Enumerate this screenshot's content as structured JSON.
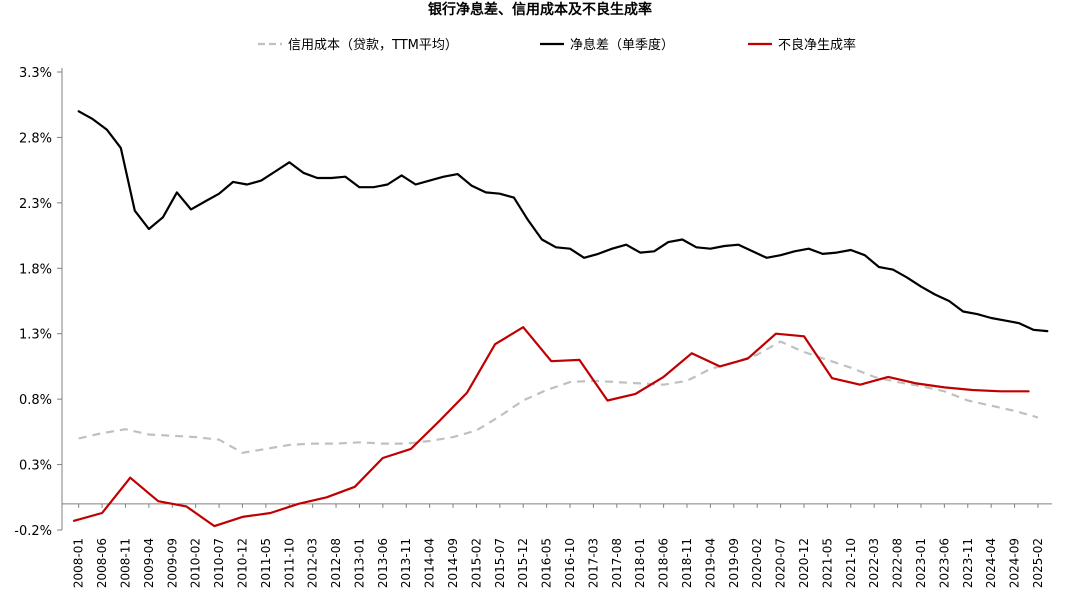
{
  "chart_data": {
    "type": "line",
    "title": "银行净息差、信用成本及不良生成率",
    "xlabel": "",
    "ylabel": "",
    "ylim": [
      -0.2,
      3.3
    ],
    "ytick_labels": [
      "3.3%",
      "2.8%",
      "2.3%",
      "1.8%",
      "1.3%",
      "0.8%",
      "0.3%",
      "-0.2%"
    ],
    "ytick_values": [
      3.3,
      2.8,
      2.3,
      1.8,
      1.3,
      0.8,
      0.3,
      -0.2
    ],
    "x_start": "2008-01",
    "x_end": "2025-04",
    "xtick_labels": [
      "2008-01",
      "2008-06",
      "2008-11",
      "2009-04",
      "2009-09",
      "2010-02",
      "2010-07",
      "2010-12",
      "2011-05",
      "2011-10",
      "2012-03",
      "2012-08",
      "2013-01",
      "2013-06",
      "2013-11",
      "2014-04",
      "2014-09",
      "2015-02",
      "2015-07",
      "2015-12",
      "2016-05",
      "2016-10",
      "2017-03",
      "2017-08",
      "2018-01",
      "2018-06",
      "2018-11",
      "2019-04",
      "2019-09",
      "2020-02",
      "2020-07",
      "2020-12",
      "2021-05",
      "2021-10",
      "2022-03",
      "2022-08",
      "2023-01",
      "2023-06",
      "2023-11",
      "2024-04",
      "2024-09",
      "2025-02"
    ],
    "grid": false,
    "legend_position": "top",
    "series": [
      {
        "name": "信用成本（贷款，TTM平均）",
        "color": "#c0c0c0",
        "dashed": true,
        "x": [
          "2008-01",
          "2008-06",
          "2008-11",
          "2009-04",
          "2009-09",
          "2010-02",
          "2010-07",
          "2010-12",
          "2011-05",
          "2011-10",
          "2012-03",
          "2012-08",
          "2013-01",
          "2013-06",
          "2013-11",
          "2014-04",
          "2014-09",
          "2015-02",
          "2015-07",
          "2015-12",
          "2016-05",
          "2016-10",
          "2017-03",
          "2017-08",
          "2018-01",
          "2018-06",
          "2018-11",
          "2019-04",
          "2019-09",
          "2020-02",
          "2020-07",
          "2020-12",
          "2021-05",
          "2021-10",
          "2022-03",
          "2022-08",
          "2023-01",
          "2023-06",
          "2023-11",
          "2024-04",
          "2024-09",
          "2025-02"
        ],
        "values": [
          0.5,
          0.54,
          0.57,
          0.53,
          0.52,
          0.51,
          0.49,
          0.39,
          0.42,
          0.45,
          0.46,
          0.46,
          0.47,
          0.46,
          0.46,
          0.48,
          0.51,
          0.56,
          0.67,
          0.79,
          0.87,
          0.93,
          0.94,
          0.93,
          0.92,
          0.91,
          0.94,
          1.03,
          1.08,
          1.14,
          1.24,
          1.16,
          1.1,
          1.04,
          0.97,
          0.93,
          0.9,
          0.86,
          0.79,
          0.75,
          0.71,
          0.66
        ]
      },
      {
        "name": "净息差（单季度）",
        "color": "#000000",
        "dashed": false,
        "x": [
          "2008-01",
          "2008-04",
          "2008-07",
          "2008-10",
          "2009-01",
          "2009-04",
          "2009-07",
          "2009-10",
          "2010-01",
          "2010-04",
          "2010-07",
          "2010-10",
          "2011-01",
          "2011-04",
          "2011-07",
          "2011-10",
          "2012-01",
          "2012-04",
          "2012-07",
          "2012-10",
          "2013-01",
          "2013-04",
          "2013-07",
          "2013-10",
          "2014-01",
          "2014-04",
          "2014-07",
          "2014-10",
          "2015-01",
          "2015-04",
          "2015-07",
          "2015-10",
          "2016-01",
          "2016-04",
          "2016-07",
          "2016-10",
          "2017-01",
          "2017-04",
          "2017-07",
          "2017-10",
          "2018-01",
          "2018-04",
          "2018-07",
          "2018-10",
          "2019-01",
          "2019-04",
          "2019-07",
          "2019-10",
          "2020-01",
          "2020-04",
          "2020-07",
          "2020-10",
          "2021-01",
          "2021-04",
          "2021-07",
          "2021-10",
          "2022-01",
          "2022-04",
          "2022-07",
          "2022-10",
          "2023-01",
          "2023-04",
          "2023-07",
          "2023-10",
          "2024-01",
          "2024-04",
          "2024-07",
          "2024-10",
          "2025-01",
          "2025-04"
        ],
        "values": [
          3.0,
          2.94,
          2.86,
          2.72,
          2.24,
          2.1,
          2.19,
          2.38,
          2.25,
          2.31,
          2.37,
          2.46,
          2.44,
          2.47,
          2.54,
          2.61,
          2.53,
          2.49,
          2.49,
          2.5,
          2.42,
          2.42,
          2.44,
          2.51,
          2.44,
          2.47,
          2.5,
          2.52,
          2.43,
          2.38,
          2.37,
          2.34,
          2.17,
          2.02,
          1.96,
          1.95,
          1.88,
          1.91,
          1.95,
          1.98,
          1.92,
          1.93,
          2.0,
          2.02,
          1.96,
          1.95,
          1.97,
          1.98,
          1.93,
          1.88,
          1.9,
          1.93,
          1.95,
          1.91,
          1.92,
          1.94,
          1.9,
          1.81,
          1.79,
          1.73,
          1.66,
          1.6,
          1.55,
          1.47,
          1.45,
          1.42,
          1.4,
          1.38,
          1.33,
          1.32
        ]
      },
      {
        "name": "不良净生成率",
        "color": "#c00000",
        "dashed": false,
        "x": [
          "2007-12",
          "2008-06",
          "2008-12",
          "2009-06",
          "2009-12",
          "2010-06",
          "2010-12",
          "2011-06",
          "2011-12",
          "2012-06",
          "2012-12",
          "2013-06",
          "2013-12",
          "2014-06",
          "2014-12",
          "2015-06",
          "2015-12",
          "2016-06",
          "2016-12",
          "2017-06",
          "2017-12",
          "2018-06",
          "2018-12",
          "2019-06",
          "2019-12",
          "2020-06",
          "2020-12",
          "2021-06",
          "2021-12",
          "2022-06",
          "2022-12",
          "2023-06",
          "2023-12",
          "2024-06",
          "2024-12"
        ],
        "values": [
          -0.13,
          -0.07,
          0.2,
          0.02,
          -0.02,
          -0.17,
          -0.1,
          -0.07,
          0.0,
          0.05,
          0.13,
          0.35,
          0.42,
          0.63,
          0.85,
          1.22,
          1.35,
          1.09,
          1.1,
          0.79,
          0.84,
          0.97,
          1.15,
          1.05,
          1.11,
          1.3,
          1.28,
          0.96,
          0.91,
          0.97,
          0.92,
          0.89,
          0.87,
          0.86,
          0.86
        ]
      }
    ]
  }
}
